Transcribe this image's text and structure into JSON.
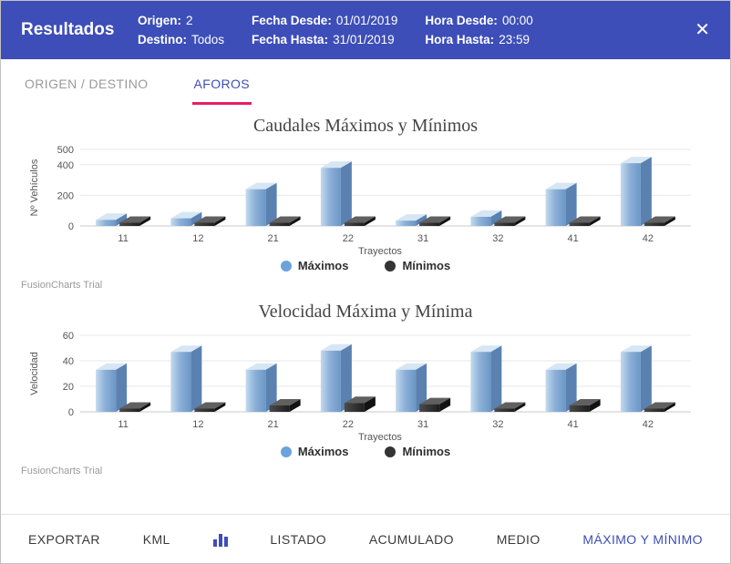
{
  "header": {
    "title": "Resultados",
    "close_label": "✕",
    "info": [
      {
        "rows": [
          {
            "label": "Origen:",
            "value": "2"
          },
          {
            "label": "Destino:",
            "value": "Todos"
          }
        ]
      },
      {
        "rows": [
          {
            "label": "Fecha Desde:",
            "value": "01/01/2019"
          },
          {
            "label": "Fecha Hasta:",
            "value": "31/01/2019"
          }
        ]
      },
      {
        "rows": [
          {
            "label": "Hora Desde:",
            "value": "00:00"
          },
          {
            "label": "Hora Hasta:",
            "value": "23:59"
          }
        ]
      }
    ]
  },
  "tabs": [
    {
      "label": "ORIGEN / DESTINO",
      "active": false
    },
    {
      "label": "AFOROS",
      "active": true
    }
  ],
  "watermark": "FusionCharts Trial",
  "colors": {
    "header_bg": "#3d4eb8",
    "accent_pink": "#e91e63",
    "active_blue": "#3d4eb8",
    "bar_blue": "#7da7d9",
    "bar_dark": "#333333"
  },
  "chart_data": [
    {
      "type": "bar",
      "title": "Caudales Máximos y Mínimos",
      "categories": [
        "11",
        "12",
        "21",
        "22",
        "31",
        "32",
        "41",
        "42"
      ],
      "series": [
        {
          "name": "Máximos",
          "color": "#6ba3da",
          "values": [
            40,
            50,
            240,
            380,
            35,
            60,
            240,
            410
          ]
        },
        {
          "name": "Mínimos",
          "color": "#343434",
          "values": [
            0,
            0,
            0,
            0,
            0,
            0,
            0,
            0
          ]
        }
      ],
      "xlabel": "Trayectos",
      "ylabel": "Nº Vehículos",
      "yticks": [
        0,
        200,
        400,
        500
      ],
      "ylim": [
        0,
        500
      ],
      "legend_position": "bottom",
      "grid": true
    },
    {
      "type": "bar",
      "title": "Velocidad Máxima y Mínima",
      "categories": [
        "11",
        "12",
        "21",
        "22",
        "31",
        "32",
        "41",
        "42"
      ],
      "series": [
        {
          "name": "Máximos",
          "color": "#6ba3da",
          "values": [
            33,
            47,
            33,
            48,
            33,
            47,
            33,
            47
          ]
        },
        {
          "name": "Mínimos",
          "color": "#343434",
          "values": [
            0,
            0,
            5,
            7,
            6,
            0,
            5,
            0
          ]
        }
      ],
      "xlabel": "Trayectos",
      "ylabel": "Velocidad",
      "yticks": [
        0,
        20,
        40,
        60
      ],
      "ylim": [
        0,
        60
      ],
      "legend_position": "bottom",
      "grid": true
    }
  ],
  "footer": {
    "items": [
      "EXPORTAR",
      "KML",
      "LISTADO",
      "ACUMULADO",
      "MEDIO",
      "MÁXIMO Y MÍNIMO"
    ],
    "active": "MÁXIMO Y MÍNIMO"
  }
}
